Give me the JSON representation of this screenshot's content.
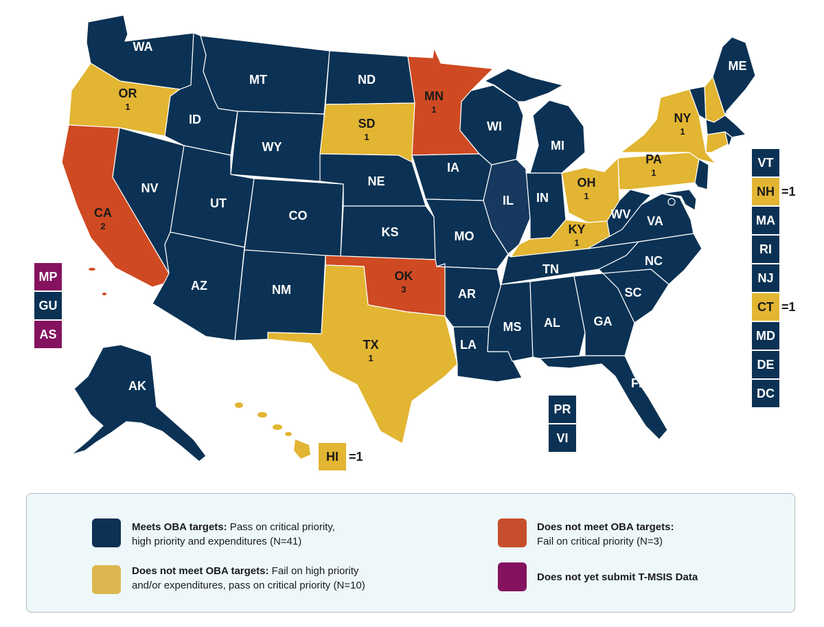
{
  "colors": {
    "meets": "#0b3254",
    "fail_high": "#e2b532",
    "fail_critical": "#cf4a22",
    "no_data": "#84125f",
    "illinois": "#17385f"
  },
  "states": {
    "WA": {
      "label": "WA",
      "count": ""
    },
    "OR": {
      "label": "OR",
      "count": "1"
    },
    "CA": {
      "label": "CA",
      "count": "2"
    },
    "NV": {
      "label": "NV",
      "count": ""
    },
    "ID": {
      "label": "ID",
      "count": ""
    },
    "MT": {
      "label": "MT",
      "count": ""
    },
    "WY": {
      "label": "WY",
      "count": ""
    },
    "UT": {
      "label": "UT",
      "count": ""
    },
    "AZ": {
      "label": "AZ",
      "count": ""
    },
    "CO": {
      "label": "CO",
      "count": ""
    },
    "NM": {
      "label": "NM",
      "count": ""
    },
    "ND": {
      "label": "ND",
      "count": ""
    },
    "SD": {
      "label": "SD",
      "count": "1"
    },
    "NE": {
      "label": "NE",
      "count": ""
    },
    "KS": {
      "label": "KS",
      "count": ""
    },
    "OK": {
      "label": "OK",
      "count": "3"
    },
    "TX": {
      "label": "TX",
      "count": "1"
    },
    "MN": {
      "label": "MN",
      "count": "1"
    },
    "IA": {
      "label": "IA",
      "count": ""
    },
    "MO": {
      "label": "MO",
      "count": ""
    },
    "AR": {
      "label": "AR",
      "count": ""
    },
    "LA": {
      "label": "LA",
      "count": ""
    },
    "WI": {
      "label": "WI",
      "count": ""
    },
    "IL": {
      "label": "IL",
      "count": ""
    },
    "MI": {
      "label": "MI",
      "count": ""
    },
    "IN": {
      "label": "IN",
      "count": ""
    },
    "OH": {
      "label": "OH",
      "count": "1"
    },
    "KY": {
      "label": "KY",
      "count": "1"
    },
    "TN": {
      "label": "TN",
      "count": ""
    },
    "MS": {
      "label": "MS",
      "count": ""
    },
    "AL": {
      "label": "AL",
      "count": ""
    },
    "GA": {
      "label": "GA",
      "count": ""
    },
    "FL": {
      "label": "FL",
      "count": ""
    },
    "SC": {
      "label": "SC",
      "count": ""
    },
    "NC": {
      "label": "NC",
      "count": ""
    },
    "VA": {
      "label": "VA",
      "count": ""
    },
    "WV": {
      "label": "WV",
      "count": ""
    },
    "PA": {
      "label": "PA",
      "count": "1"
    },
    "NY": {
      "label": "NY",
      "count": "1"
    },
    "ME": {
      "label": "ME",
      "count": ""
    },
    "AK": {
      "label": "AK",
      "count": ""
    }
  },
  "east_boxes": {
    "VT": "VT",
    "NH": "NH",
    "MA": "MA",
    "RI": "RI",
    "NJ": "NJ",
    "CT": "CT",
    "MD": "MD",
    "DE": "DE",
    "DC": "DC",
    "NH_count": "=1",
    "CT_count": "=1"
  },
  "territories": {
    "MP": "MP",
    "GU": "GU",
    "AS": "AS",
    "PR": "PR",
    "VI": "VI",
    "HI": "HI",
    "HI_count": "=1"
  },
  "legend": {
    "meets_bold": "Meets OBA targets:",
    "meets_line1": " Pass on critical priority,",
    "meets_line2": "high priority and expenditures (N=41)",
    "high_bold": "Does not meet OBA targets:",
    "high_line1": " Fail on high priority",
    "high_line2": "and/or expenditures, pass on critical priority (N=10)",
    "crit_bold": "Does not meet OBA targets:",
    "crit_line2": "Fail on critical priority (N=3)",
    "nodata_bold": "Does not yet submit T-MSIS Data"
  }
}
